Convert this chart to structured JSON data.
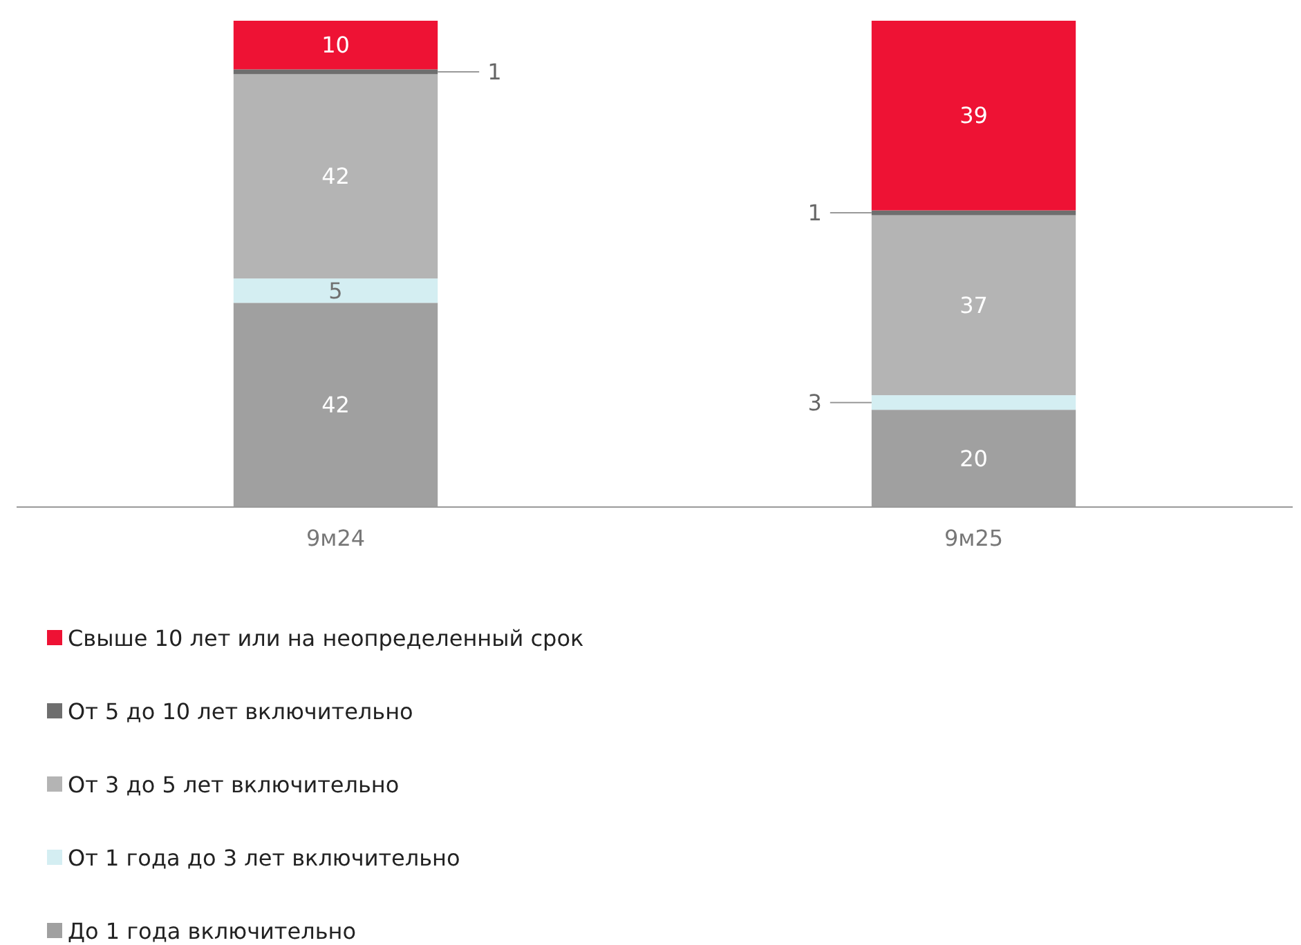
{
  "chart_data": {
    "type": "bar",
    "stacked": true,
    "data_labels": true,
    "legend": "bottom",
    "categories": [
      "9м24",
      "9м25"
    ],
    "series": [
      {
        "name": "До 1 года включительно",
        "color": "#a0a0a0",
        "values": [
          42,
          20
        ]
      },
      {
        "name": "От 1 года до 3 лет включительно",
        "color": "#d4eef2",
        "values": [
          5,
          3
        ]
      },
      {
        "name": "От 3 до 5 лет включительно",
        "color": "#b4b4b4",
        "values": [
          42,
          37
        ]
      },
      {
        "name": "От 5 до 10 лет включительно",
        "color": "#6e6e6e",
        "values": [
          1,
          1
        ]
      },
      {
        "name": "Свыше 10 лет или на неопределенный срок",
        "color": "#ee1234",
        "values": [
          10,
          39
        ]
      }
    ]
  }
}
